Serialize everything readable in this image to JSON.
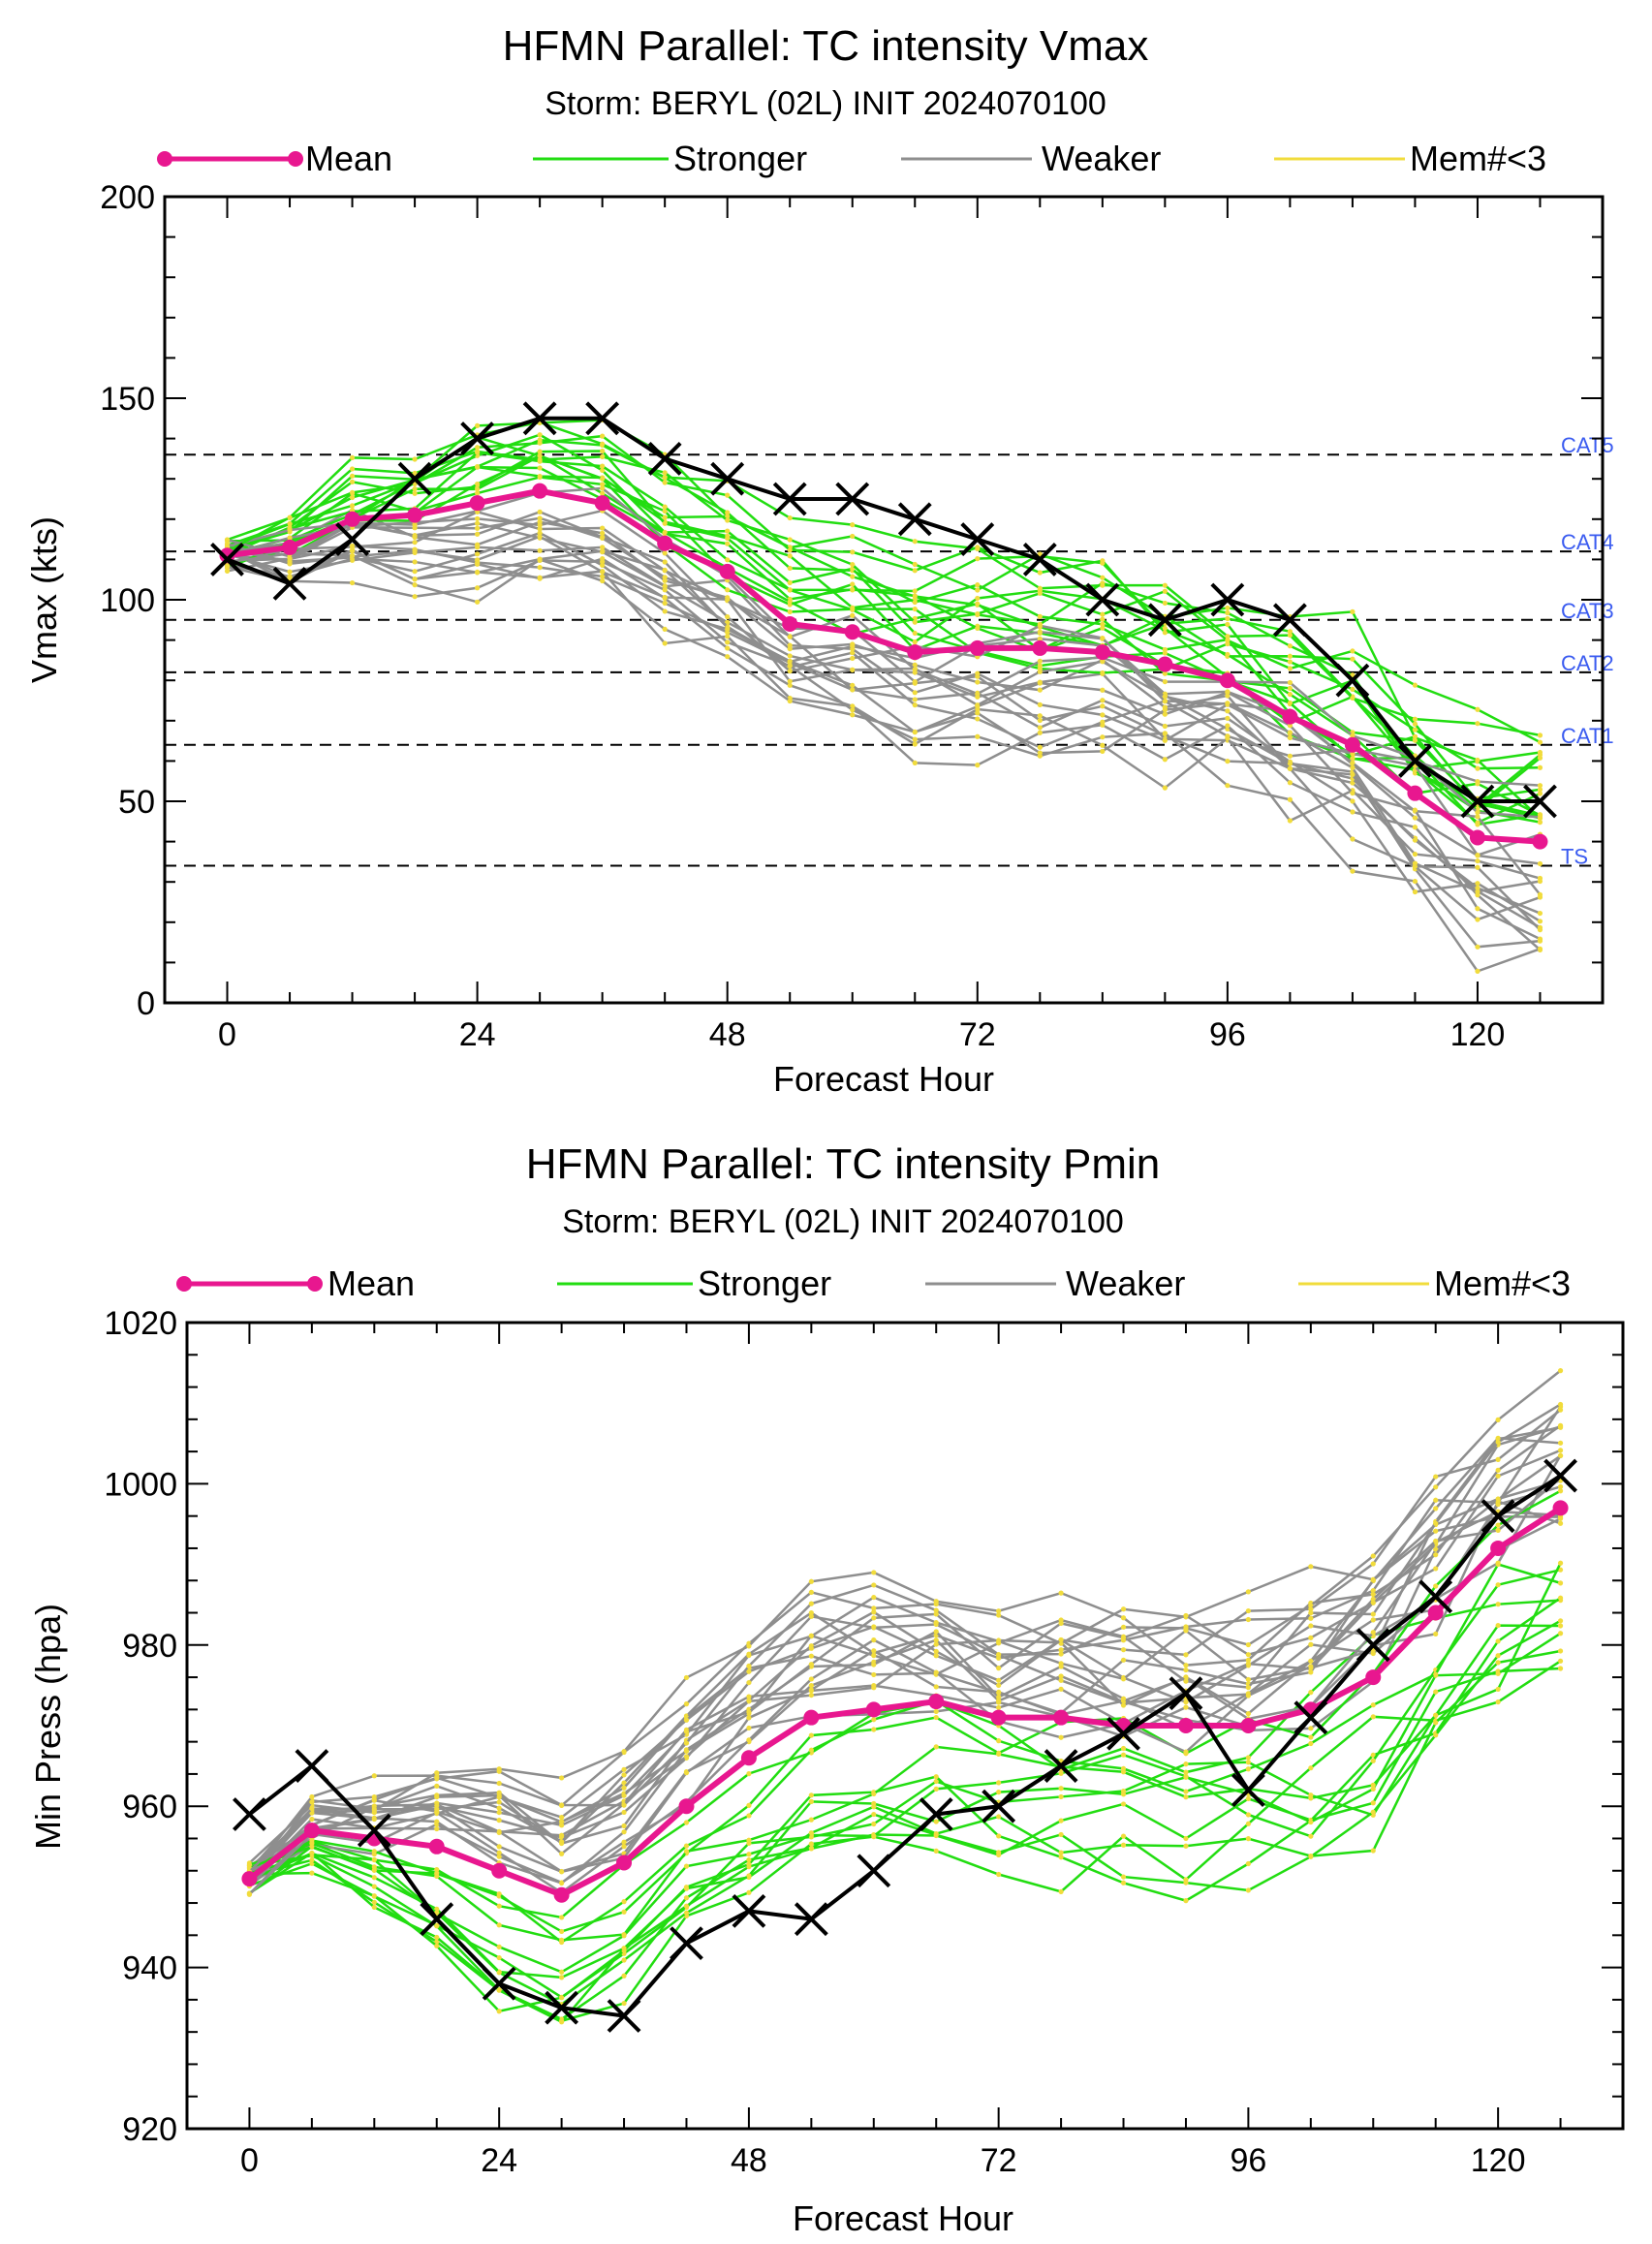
{
  "colors": {
    "mean": "#e8178f",
    "stronger": "#22dd11",
    "weaker": "#8e8e8e",
    "member_points": "#f1dc3c",
    "observed": "#000000",
    "category_labels": "#3a5bf0",
    "category_lines": "#000000"
  },
  "legend_labels": {
    "mean": "Mean",
    "stronger": "Stronger",
    "weaker": "Weaker",
    "few_members": "Mem#<3"
  },
  "chart_data": [
    {
      "type": "line",
      "title": "HFMN Parallel: TC intensity Vmax",
      "subtitle": "Storm: BERYL (02L) INIT 2024070100",
      "xlabel": "Forecast Hour",
      "ylabel": "Vmax (kts)",
      "xlim": [
        -6,
        132
      ],
      "ylim": [
        0,
        200
      ],
      "xticks": [
        0,
        24,
        48,
        72,
        96,
        120
      ],
      "yticks": [
        0,
        50,
        100,
        150,
        200
      ],
      "grid": false,
      "legend_position": "top",
      "x": [
        0,
        6,
        12,
        18,
        24,
        30,
        36,
        42,
        48,
        54,
        60,
        66,
        72,
        78,
        84,
        90,
        96,
        102,
        108,
        114,
        120,
        126
      ],
      "category_thresholds": [
        {
          "label": "CAT5",
          "value": 136
        },
        {
          "label": "CAT4",
          "value": 112
        },
        {
          "label": "CAT3",
          "value": 95
        },
        {
          "label": "CAT2",
          "value": 82
        },
        {
          "label": "CAT1",
          "value": 64
        },
        {
          "label": "TS",
          "value": 34
        }
      ],
      "series": [
        {
          "name": "Mean",
          "values": [
            111,
            113,
            120,
            121,
            124,
            127,
            124,
            114,
            107,
            94,
            92,
            87,
            88,
            88,
            87,
            84,
            80,
            71,
            64,
            52,
            41,
            40
          ]
        },
        {
          "values": [
            110,
            104,
            115,
            130,
            140,
            145,
            145,
            135,
            130,
            125,
            125,
            120,
            115,
            110,
            100,
            95,
            100,
            95,
            80,
            60,
            50,
            50
          ]
        }
      ]
    },
    {
      "type": "line",
      "title": "HFMN Parallel: TC intensity Pmin",
      "subtitle": "Storm: BERYL (02L) INIT 2024070100",
      "xlabel": "Forecast Hour",
      "ylabel": "Min Press (hpa)",
      "xlim": [
        -6,
        132
      ],
      "ylim": [
        920,
        1020
      ],
      "xticks": [
        0,
        24,
        48,
        72,
        96,
        120
      ],
      "yticks": [
        920,
        940,
        960,
        980,
        1000,
        1020
      ],
      "grid": false,
      "legend_position": "top",
      "x": [
        0,
        6,
        12,
        18,
        24,
        30,
        36,
        42,
        48,
        54,
        60,
        66,
        72,
        78,
        84,
        90,
        96,
        102,
        108,
        114,
        120,
        126
      ],
      "series": [
        {
          "name": "Mean",
          "values": [
            951,
            957,
            956,
            955,
            952,
            949,
            953,
            960,
            966,
            971,
            972,
            973,
            971,
            971,
            970,
            970,
            970,
            972,
            976,
            984,
            992,
            997
          ]
        },
        {
          "values": [
            959,
            965,
            957,
            946,
            938,
            935,
            934,
            943,
            947,
            946,
            952,
            959,
            960,
            965,
            969,
            974,
            962,
            971,
            980,
            986,
            996,
            1001
          ]
        }
      ]
    }
  ]
}
